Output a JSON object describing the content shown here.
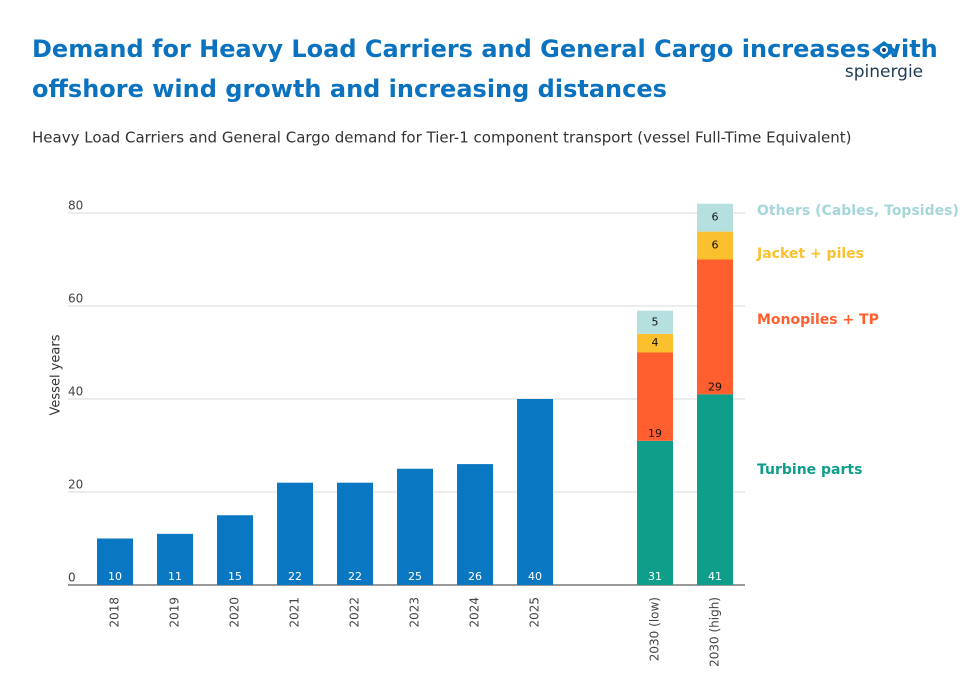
{
  "logo": "spinergie",
  "chart_data": {
    "type": "bar",
    "stacked": true,
    "title": "Demand for Heavy Load Carriers and General Cargo increases with offshore wind growth and increasing distances",
    "subtitle": "Heavy Load Carriers and General Cargo demand for Tier-1 component transport (vessel Full-Time Equivalent)",
    "y_label": "Vessel years",
    "categories": [
      "2018",
      "2019",
      "2020",
      "2021",
      "2022",
      "2023",
      "2024",
      "2025",
      null,
      "2030 (low)",
      "2030 (high)"
    ],
    "series": [
      {
        "color": "#0a77c2",
        "values": [
          10,
          11,
          15,
          22,
          22,
          25,
          26,
          40,
          null,
          null,
          null
        ]
      },
      {
        "name": "Turbine parts",
        "color": "#0e9e8a",
        "values": [
          null,
          null,
          null,
          null,
          null,
          null,
          null,
          null,
          null,
          31,
          41
        ]
      },
      {
        "name": "Monopiles + TP",
        "color": "#ff5f2e",
        "values": [
          null,
          null,
          null,
          null,
          null,
          null,
          null,
          null,
          null,
          19,
          29
        ]
      },
      {
        "name": "Jacket + piles",
        "color": "#fbc02d",
        "values": [
          null,
          null,
          null,
          null,
          null,
          null,
          null,
          null,
          null,
          4,
          6
        ]
      },
      {
        "name": "Others (Cables, Topsides)",
        "color": "#b6dfe0",
        "values": [
          null,
          null,
          null,
          null,
          null,
          null,
          null,
          null,
          null,
          5,
          6
        ]
      }
    ],
    "ylim": [
      0,
      80
    ],
    "yticks": [
      0,
      20,
      40,
      60,
      80
    ],
    "grid": true
  }
}
